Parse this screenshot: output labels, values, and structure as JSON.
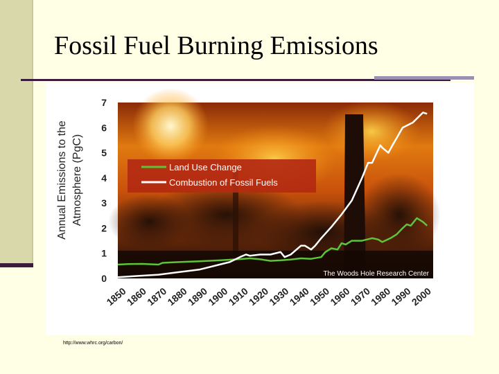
{
  "slide": {
    "title": "Fossil Fuel Burning Emissions",
    "source_url": "http://www.whrc.org/carbon/"
  },
  "chart_data": {
    "type": "line",
    "ylabel_line1": "Annual Emissions to the",
    "ylabel_line2": "Atmosphere (PgC)",
    "xlabel": "",
    "credit": "The Woods Hole Research Center",
    "xlim": [
      1850,
      2005
    ],
    "ylim": [
      0,
      7
    ],
    "x_ticks": [
      1850,
      1860,
      1870,
      1880,
      1890,
      1900,
      1910,
      1920,
      1930,
      1940,
      1950,
      1960,
      1970,
      1980,
      1990,
      2000
    ],
    "y_ticks": [
      0,
      1,
      2,
      3,
      4,
      5,
      6,
      7
    ],
    "colors": {
      "land_use": "#5ec43a",
      "fossil": "#ffffff",
      "legend_bg": "#b32a12"
    },
    "series": [
      {
        "name": "Land Use Change",
        "x": [
          1850,
          1855,
          1862,
          1870,
          1872,
          1880,
          1890,
          1900,
          1910,
          1915,
          1920,
          1925,
          1930,
          1935,
          1940,
          1945,
          1950,
          1952,
          1955,
          1958,
          1960,
          1962,
          1965,
          1970,
          1975,
          1978,
          1980,
          1984,
          1987,
          1990,
          1992,
          1994,
          1997,
          2000,
          2002
        ],
        "values": [
          0.55,
          0.57,
          0.58,
          0.55,
          0.62,
          0.65,
          0.68,
          0.72,
          0.77,
          0.8,
          0.76,
          0.7,
          0.72,
          0.75,
          0.8,
          0.78,
          0.85,
          1.05,
          1.2,
          1.15,
          1.4,
          1.35,
          1.5,
          1.5,
          1.6,
          1.55,
          1.45,
          1.6,
          1.75,
          2.0,
          2.15,
          2.1,
          2.4,
          2.25,
          2.1
        ]
      },
      {
        "name": "Combustion of Fossil Fuels",
        "x": [
          1850,
          1860,
          1870,
          1880,
          1890,
          1900,
          1905,
          1910,
          1913,
          1915,
          1920,
          1925,
          1930,
          1932,
          1935,
          1940,
          1942,
          1945,
          1947,
          1950,
          1955,
          1960,
          1965,
          1970,
          1973,
          1975,
          1979,
          1980,
          1983,
          1985,
          1990,
          1995,
          2000,
          2002
        ],
        "values": [
          0.05,
          0.1,
          0.15,
          0.25,
          0.35,
          0.55,
          0.65,
          0.85,
          0.95,
          0.9,
          0.95,
          0.95,
          1.05,
          0.85,
          0.95,
          1.3,
          1.3,
          1.15,
          1.3,
          1.6,
          2.05,
          2.55,
          3.1,
          4.0,
          4.6,
          4.6,
          5.3,
          5.2,
          5.0,
          5.3,
          6.0,
          6.2,
          6.6,
          6.55
        ]
      }
    ]
  }
}
